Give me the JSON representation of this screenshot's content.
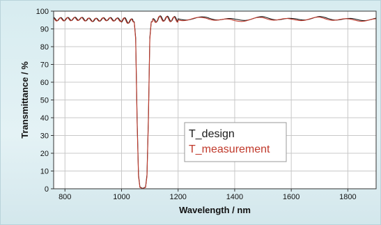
{
  "chart_data": {
    "type": "line",
    "xlabel": "Wavelength / nm",
    "ylabel": "Transmittance / %",
    "xlim": [
      760,
      1900
    ],
    "ylim": [
      0,
      100
    ],
    "xticks": [
      800,
      1000,
      1200,
      1400,
      1600,
      1800
    ],
    "yticks": [
      0,
      10,
      20,
      30,
      40,
      50,
      60,
      70,
      80,
      90,
      100
    ],
    "grid": true,
    "legend_position": "center-right",
    "series": [
      {
        "name": "T_design",
        "color": "#1a1a1a",
        "x": [
          760,
          800,
          850,
          900,
          950,
          1000,
          1030,
          1045,
          1050,
          1055,
          1060,
          1065,
          1075,
          1085,
          1090,
          1095,
          1100,
          1105,
          1115,
          1130,
          1200,
          1300,
          1400,
          1500,
          1600,
          1700,
          1800,
          1900
        ],
        "y": [
          95.5,
          95.5,
          95.8,
          95.0,
          95.6,
          95.2,
          94.5,
          94.0,
          85.0,
          40.0,
          8.0,
          1.0,
          0.2,
          1.0,
          8.0,
          40.0,
          85.0,
          94.0,
          94.5,
          96.0,
          95.5,
          96.2,
          95.0,
          96.3,
          95.2,
          96.3,
          95.2,
          95.5
        ]
      },
      {
        "name": "T_measurement",
        "color": "#c0392b",
        "x": [
          760,
          800,
          850,
          900,
          950,
          1000,
          1030,
          1045,
          1050,
          1055,
          1060,
          1065,
          1075,
          1085,
          1090,
          1095,
          1100,
          1105,
          1115,
          1130,
          1200,
          1300,
          1400,
          1500,
          1600,
          1700,
          1800,
          1900
        ],
        "y": [
          95.3,
          95.4,
          95.6,
          95.0,
          95.5,
          95.0,
          94.3,
          93.8,
          84.0,
          38.0,
          7.0,
          0.8,
          0.1,
          0.8,
          7.0,
          38.0,
          84.0,
          93.8,
          94.3,
          95.8,
          95.2,
          96.0,
          94.5,
          96.0,
          95.0,
          96.0,
          95.0,
          95.0
        ]
      }
    ]
  }
}
